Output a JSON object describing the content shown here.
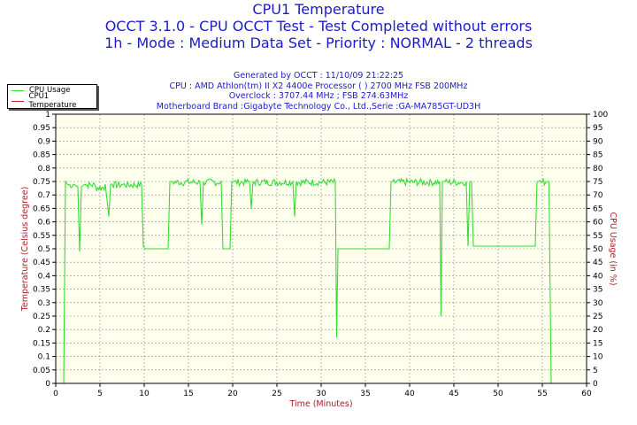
{
  "titles": [
    "CPU1 Temperature",
    "OCCT 3.1.0 - CPU OCCT Test - Test Completed without errors",
    "1h - Mode : Medium Data Set - Priority : NORMAL - 2 threads"
  ],
  "info": [
    "Generated by OCCT : 11/10/09 21:22:25",
    "CPU : AMD Athlon(tm) II X2 4400e Processor (  ) 2700 MHz FSB 200MHz",
    "Overclock : 3707.44 MHz ; FSB 274.63MHz",
    "Motherboard Brand :Gigabyte Technology Co., Ltd.,Serie :GA-MA785GT-UD3H"
  ],
  "legend": [
    {
      "label": "CPU Usage",
      "color": "#33dd33"
    },
    {
      "label": "CPU1 Temperature",
      "color": "#cc2222"
    }
  ],
  "colors": {
    "title": "#1c1cc8",
    "axis_label": "#aa2222",
    "plot_bg": "#ffffee",
    "grid": "#888888",
    "usage": "#33dd33"
  },
  "chart_data": {
    "type": "line",
    "xlabel": "Time (Minutes)",
    "ylabel_left": "Temperature (Celsius degree)",
    "ylabel_right": "CPU Usage (in %)",
    "xlim": [
      0,
      60
    ],
    "ylim_left": [
      0,
      1
    ],
    "ylim_right": [
      0,
      100
    ],
    "x_ticks": [
      "0",
      "5",
      "10",
      "15",
      "20",
      "25",
      "30",
      "35",
      "40",
      "45",
      "50",
      "55",
      "60"
    ],
    "y_left_ticks": [
      "0",
      "0.05",
      "0.1",
      "0.15",
      "0.2",
      "0.25",
      "0.3",
      "0.35",
      "0.4",
      "0.45",
      "0.5",
      "0.55",
      "0.6",
      "0.65",
      "0.7",
      "0.75",
      "0.8",
      "0.85",
      "0.9",
      "0.95",
      "1"
    ],
    "y_right_ticks": [
      "0",
      "5",
      "10",
      "15",
      "20",
      "25",
      "30",
      "35",
      "40",
      "45",
      "50",
      "55",
      "60",
      "65",
      "70",
      "75",
      "80",
      "85",
      "90",
      "95",
      "100"
    ],
    "grid": true,
    "legend_position": "top-left",
    "series": [
      {
        "name": "CPU Usage",
        "x": [
          0.9,
          1.1,
          1.3,
          2.0,
          2.5,
          2.7,
          2.9,
          3.3,
          4.5,
          5.6,
          6.0,
          6.2,
          6.4,
          7.5,
          9.7,
          9.9,
          10.1,
          12.7,
          12.9,
          13.1,
          16.3,
          16.5,
          16.7,
          18.7,
          18.9,
          19.2,
          19.7,
          19.9,
          20.1,
          21.9,
          22.1,
          22.3,
          26.8,
          27.0,
          27.2,
          31.6,
          31.75,
          31.9,
          32.1,
          37.7,
          37.9,
          38.1,
          43.4,
          43.55,
          43.7,
          44.0,
          46.4,
          46.6,
          46.8,
          47.0,
          47.2,
          48.3,
          48.45,
          48.6,
          54.2,
          54.4,
          54.6,
          55.5,
          55.75,
          56.0
        ],
        "y": [
          0,
          75,
          74,
          74,
          73,
          49,
          73,
          74,
          73,
          74,
          62,
          74,
          74,
          74,
          74,
          51,
          50,
          50,
          75,
          75,
          75,
          59,
          75,
          75,
          50,
          50,
          50,
          75,
          75,
          75,
          65,
          75,
          75,
          62,
          75,
          75,
          17,
          50,
          50,
          50,
          75,
          75,
          75,
          25,
          75,
          75,
          75,
          51,
          75,
          75,
          51,
          51,
          51,
          51,
          51,
          75,
          75,
          75,
          75,
          0
        ]
      },
      {
        "name": "CPU1 Temperature",
        "x": [],
        "y": []
      }
    ]
  }
}
